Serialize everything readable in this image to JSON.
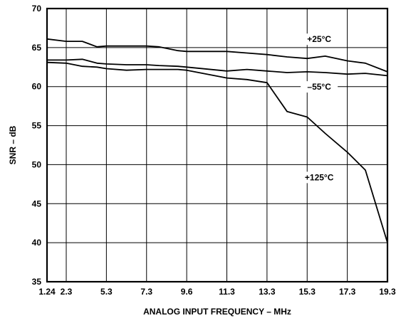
{
  "chart_data": {
    "type": "line",
    "xlabel": "ANALOG INPUT FREQUENCY – MHz",
    "ylabel": "SNR – dB",
    "x_ticks": [
      "1.24",
      "2.3",
      "5.3",
      "7.3",
      "9.6",
      "11.3",
      "13.3",
      "15.3",
      "17.3",
      "19.3"
    ],
    "xlim": [
      1.24,
      19.3
    ],
    "ylim": [
      35,
      70
    ],
    "y_ticks": [
      35,
      40,
      45,
      50,
      55,
      60,
      65,
      70
    ],
    "grid": true,
    "series": [
      {
        "name": "+25°C",
        "x": [
          1.24,
          2.3,
          3.5,
          4.6,
          5.3,
          6.3,
          7.3,
          8.0,
          9.1,
          9.6,
          11.3,
          12.3,
          13.3,
          14.3,
          15.3,
          16.2,
          17.3,
          18.2,
          19.3
        ],
        "y": [
          66.1,
          65.8,
          65.8,
          65.1,
          65.2,
          65.2,
          65.2,
          65.1,
          64.6,
          64.5,
          64.5,
          64.3,
          64.1,
          63.8,
          63.6,
          63.9,
          63.3,
          63.0,
          61.9
        ]
      },
      {
        "name": "–55°C",
        "x": [
          1.24,
          2.3,
          3.5,
          4.6,
          5.3,
          6.3,
          7.3,
          8.0,
          9.1,
          9.6,
          11.3,
          12.3,
          13.3,
          14.3,
          15.3,
          16.2,
          17.3,
          18.2,
          19.3
        ],
        "y": [
          63.4,
          63.4,
          63.5,
          63.0,
          62.9,
          62.8,
          62.8,
          62.7,
          62.6,
          62.5,
          62.0,
          62.2,
          62.0,
          61.8,
          61.9,
          61.8,
          61.6,
          61.7,
          61.4
        ]
      },
      {
        "name": "+125°C",
        "x": [
          1.24,
          2.3,
          3.5,
          4.6,
          5.3,
          6.3,
          7.3,
          8.0,
          9.1,
          9.6,
          11.3,
          12.3,
          13.3,
          14.3,
          15.3,
          16.2,
          17.3,
          18.2,
          19.3
        ],
        "y": [
          63.1,
          63.0,
          62.6,
          62.5,
          62.3,
          62.1,
          62.2,
          62.2,
          62.2,
          62.1,
          61.1,
          60.9,
          60.5,
          56.8,
          56.1,
          54.0,
          51.6,
          49.3,
          40.0
        ]
      }
    ],
    "annotations": [
      "+25°C",
      "–55°C",
      "+125°C"
    ]
  }
}
